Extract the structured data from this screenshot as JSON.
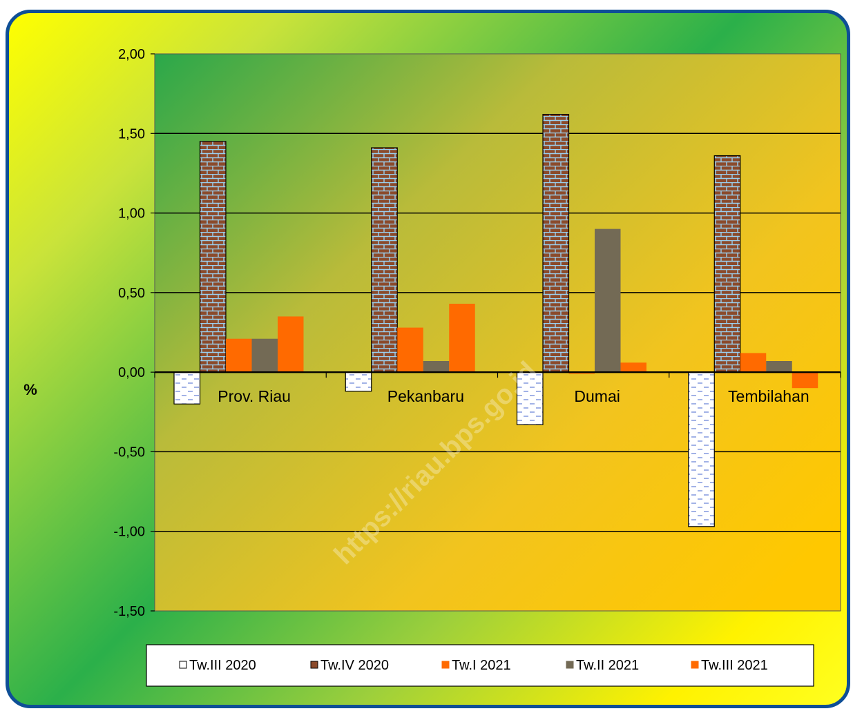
{
  "chart_data": {
    "type": "bar",
    "categories": [
      "Prov. Riau",
      "Pekanbaru",
      "Dumai",
      "Tembilahan"
    ],
    "series": [
      {
        "name": "Tw.III 2020",
        "values": [
          -0.2,
          -0.12,
          -0.33,
          -0.97
        ]
      },
      {
        "name": "Tw.IV 2020",
        "values": [
          1.45,
          1.41,
          1.62,
          1.36
        ]
      },
      {
        "name": "Tw.I 2021",
        "values": [
          0.21,
          0.28,
          -0.01,
          0.12
        ]
      },
      {
        "name": "Tw.II 2021",
        "values": [
          0.21,
          0.07,
          0.9,
          0.07
        ]
      },
      {
        "name": "Tw.III 2021",
        "values": [
          0.35,
          0.43,
          0.06,
          -0.1
        ]
      }
    ],
    "ylabel": "%",
    "ylim": [
      -1.5,
      2.0
    ],
    "ticks": [
      "2,00",
      "1,50",
      "1,00",
      "0,50",
      "0,00",
      "-0,50",
      "-1,00",
      "-1,50"
    ],
    "grid": true,
    "legend_position": "bottom",
    "watermark": "https://riau.bps.go.id",
    "colors": {
      "tw3_2020": "#ffffff",
      "tw4_2020": "#8b4a2b",
      "tw1_2021": "#ff6a00",
      "tw2_2021": "#736a55",
      "tw3_2021": "#ff6a00",
      "frame_border": "#0f4f96"
    }
  }
}
